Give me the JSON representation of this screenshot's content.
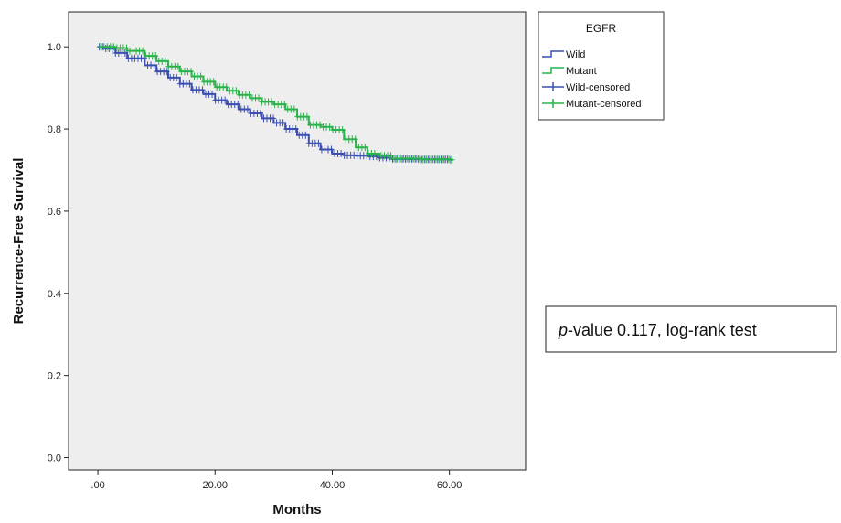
{
  "chart_data": {
    "type": "line",
    "subtype": "kaplan-meier",
    "xlabel": "Months",
    "ylabel": "Recurrence-Free Survival",
    "xlim": [
      -5,
      73
    ],
    "ylim": [
      -0.03,
      1.085
    ],
    "x_ticks": [
      0,
      20,
      40,
      60
    ],
    "x_tick_labels": [
      ".00",
      "20.00",
      "40.00",
      "60.00"
    ],
    "y_ticks": [
      0.0,
      0.2,
      0.4,
      0.6,
      0.8,
      1.0
    ],
    "y_tick_labels": [
      "0.0",
      "0.2",
      "0.4",
      "0.6",
      "0.8",
      "1.0"
    ],
    "plot_background": "#eeeeee",
    "grid": false,
    "legend": {
      "title": "EGFR",
      "placement": "right-top",
      "entries": [
        {
          "label": "Wild",
          "kind": "line",
          "color": "#3a4fb0"
        },
        {
          "label": "Mutant",
          "kind": "line",
          "color": "#29b34a"
        },
        {
          "label": "Wild-censored",
          "kind": "censor",
          "color": "#3a4fb0"
        },
        {
          "label": "Mutant-censored",
          "kind": "censor",
          "color": "#29b34a"
        }
      ]
    },
    "annotation": {
      "text_italic": "p",
      "text_rest": "-value 0.117, log-rank test"
    },
    "series": [
      {
        "name": "Wild",
        "color": "#3a4fb0",
        "x": [
          0,
          1,
          3,
          5,
          8,
          10,
          12,
          14,
          16,
          18,
          20,
          22,
          24,
          26,
          28,
          30,
          32,
          34,
          36,
          38,
          40,
          42,
          44,
          46,
          48,
          50,
          55,
          60
        ],
        "y": [
          1.0,
          0.996,
          0.985,
          0.972,
          0.955,
          0.94,
          0.925,
          0.91,
          0.895,
          0.885,
          0.87,
          0.86,
          0.848,
          0.838,
          0.826,
          0.815,
          0.8,
          0.785,
          0.765,
          0.75,
          0.74,
          0.736,
          0.735,
          0.733,
          0.73,
          0.727,
          0.726,
          0.725
        ]
      },
      {
        "name": "Mutant",
        "color": "#29b34a",
        "x": [
          0,
          1,
          3,
          5,
          8,
          10,
          12,
          14,
          16,
          18,
          20,
          22,
          24,
          26,
          28,
          30,
          32,
          34,
          36,
          38,
          40,
          42,
          44,
          46,
          48,
          50,
          55,
          60
        ],
        "y": [
          1.0,
          1.0,
          0.997,
          0.99,
          0.978,
          0.965,
          0.952,
          0.94,
          0.928,
          0.915,
          0.902,
          0.893,
          0.883,
          0.875,
          0.866,
          0.86,
          0.848,
          0.83,
          0.81,
          0.805,
          0.798,
          0.775,
          0.755,
          0.74,
          0.735,
          0.728,
          0.726,
          0.725
        ]
      }
    ]
  }
}
